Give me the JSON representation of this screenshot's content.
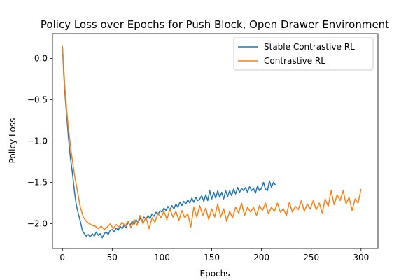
{
  "chart_data": {
    "type": "line",
    "title": "Policy Loss over Epochs for Push Block, Open Drawer Environment",
    "xlabel": "Epochs",
    "ylabel": "Policy Loss",
    "xlim": [
      -10,
      317
    ],
    "ylim": [
      -2.3,
      0.3
    ],
    "xticks": [
      0,
      50,
      100,
      150,
      200,
      250,
      300
    ],
    "xtick_labels": [
      "0",
      "50",
      "100",
      "150",
      "200",
      "250",
      "300"
    ],
    "yticks": [
      0.0,
      -0.5,
      -1.0,
      -1.5,
      -2.0
    ],
    "ytick_labels": [
      "0.0",
      "−0.5",
      "−1.0",
      "−1.5",
      "−2.0"
    ],
    "grid": false,
    "legend_position": "top-right",
    "series": [
      {
        "name": "Stable Contrastive RL",
        "color": "#1f77b4",
        "points": [
          [
            0,
            0.15
          ],
          [
            2,
            -0.35
          ],
          [
            4,
            -0.65
          ],
          [
            6,
            -0.95
          ],
          [
            8,
            -1.2
          ],
          [
            10,
            -1.38
          ],
          [
            12,
            -1.6
          ],
          [
            14,
            -1.78
          ],
          [
            16,
            -1.88
          ],
          [
            18,
            -1.97
          ],
          [
            20,
            -2.08
          ],
          [
            22,
            -2.12
          ],
          [
            24,
            -2.15
          ],
          [
            26,
            -2.13
          ],
          [
            28,
            -2.16
          ],
          [
            30,
            -2.12
          ],
          [
            32,
            -2.15
          ],
          [
            34,
            -2.1
          ],
          [
            36,
            -2.14
          ],
          [
            38,
            -2.12
          ],
          [
            40,
            -2.17
          ],
          [
            42,
            -2.12
          ],
          [
            44,
            -2.1
          ],
          [
            46,
            -2.13
          ],
          [
            48,
            -2.08
          ],
          [
            50,
            -2.07
          ],
          [
            52,
            -2.1
          ],
          [
            54,
            -2.05
          ],
          [
            56,
            -2.08
          ],
          [
            58,
            -2.03
          ],
          [
            60,
            -2.06
          ],
          [
            62,
            -2.02
          ],
          [
            64,
            -2.05
          ],
          [
            66,
            -1.98
          ],
          [
            68,
            -2.02
          ],
          [
            70,
            -1.97
          ],
          [
            72,
            -2.01
          ],
          [
            74,
            -1.95
          ],
          [
            76,
            -1.99
          ],
          [
            78,
            -1.93
          ],
          [
            80,
            -1.97
          ],
          [
            82,
            -1.92
          ],
          [
            84,
            -1.95
          ],
          [
            86,
            -1.9
          ],
          [
            88,
            -1.94
          ],
          [
            90,
            -1.88
          ],
          [
            92,
            -1.91
          ],
          [
            94,
            -1.86
          ],
          [
            96,
            -1.89
          ],
          [
            98,
            -1.84
          ],
          [
            100,
            -1.86
          ],
          [
            102,
            -1.81
          ],
          [
            104,
            -1.84
          ],
          [
            106,
            -1.79
          ],
          [
            108,
            -1.83
          ],
          [
            110,
            -1.78
          ],
          [
            112,
            -1.82
          ],
          [
            114,
            -1.76
          ],
          [
            116,
            -1.8
          ],
          [
            118,
            -1.74
          ],
          [
            120,
            -1.78
          ],
          [
            122,
            -1.73
          ],
          [
            124,
            -1.76
          ],
          [
            126,
            -1.71
          ],
          [
            128,
            -1.75
          ],
          [
            130,
            -1.69
          ],
          [
            132,
            -1.74
          ],
          [
            134,
            -1.68
          ],
          [
            136,
            -1.72
          ],
          [
            138,
            -1.7
          ],
          [
            140,
            -1.66
          ],
          [
            142,
            -1.73
          ],
          [
            144,
            -1.65
          ],
          [
            146,
            -1.72
          ],
          [
            148,
            -1.6
          ],
          [
            150,
            -1.7
          ],
          [
            152,
            -1.62
          ],
          [
            154,
            -1.69
          ],
          [
            156,
            -1.6
          ],
          [
            158,
            -1.68
          ],
          [
            160,
            -1.62
          ],
          [
            162,
            -1.7
          ],
          [
            164,
            -1.6
          ],
          [
            166,
            -1.67
          ],
          [
            168,
            -1.6
          ],
          [
            170,
            -1.66
          ],
          [
            172,
            -1.58
          ],
          [
            174,
            -1.64
          ],
          [
            176,
            -1.56
          ],
          [
            178,
            -1.62
          ],
          [
            180,
            -1.57
          ],
          [
            182,
            -1.6
          ],
          [
            184,
            -1.56
          ],
          [
            186,
            -1.62
          ],
          [
            188,
            -1.55
          ],
          [
            190,
            -1.6
          ],
          [
            192,
            -1.57
          ],
          [
            194,
            -1.63
          ],
          [
            196,
            -1.54
          ],
          [
            198,
            -1.6
          ],
          [
            200,
            -1.57
          ],
          [
            202,
            -1.5
          ],
          [
            204,
            -1.58
          ],
          [
            206,
            -1.6
          ],
          [
            208,
            -1.48
          ],
          [
            210,
            -1.56
          ],
          [
            212,
            -1.5
          ],
          [
            214,
            -1.53
          ]
        ]
      },
      {
        "name": "Contrastive RL",
        "color": "#ff7f0e",
        "points": [
          [
            0,
            0.15
          ],
          [
            3,
            -0.45
          ],
          [
            6,
            -0.85
          ],
          [
            9,
            -1.15
          ],
          [
            12,
            -1.4
          ],
          [
            15,
            -1.6
          ],
          [
            18,
            -1.8
          ],
          [
            21,
            -1.92
          ],
          [
            24,
            -1.97
          ],
          [
            27,
            -2.0
          ],
          [
            30,
            -2.02
          ],
          [
            33,
            -2.03
          ],
          [
            36,
            -2.06
          ],
          [
            39,
            -2.03
          ],
          [
            42,
            -2.07
          ],
          [
            45,
            -2.04
          ],
          [
            48,
            -2.0
          ],
          [
            51,
            -2.06
          ],
          [
            54,
            -2.01
          ],
          [
            57,
            -2.04
          ],
          [
            60,
            -1.98
          ],
          [
            63,
            -2.03
          ],
          [
            66,
            -1.97
          ],
          [
            69,
            -2.05
          ],
          [
            72,
            -1.95
          ],
          [
            75,
            -2.02
          ],
          [
            78,
            -1.9
          ],
          [
            81,
            -2.0
          ],
          [
            84,
            -1.92
          ],
          [
            87,
            -2.06
          ],
          [
            90,
            -1.93
          ],
          [
            93,
            -1.98
          ],
          [
            96,
            -1.87
          ],
          [
            99,
            -1.93
          ],
          [
            102,
            -1.85
          ],
          [
            105,
            -1.95
          ],
          [
            108,
            -1.82
          ],
          [
            111,
            -1.92
          ],
          [
            114,
            -1.85
          ],
          [
            117,
            -1.96
          ],
          [
            120,
            -1.84
          ],
          [
            123,
            -1.93
          ],
          [
            126,
            -1.88
          ],
          [
            129,
            -2.04
          ],
          [
            132,
            -1.8
          ],
          [
            135,
            -1.92
          ],
          [
            138,
            -1.78
          ],
          [
            141,
            -1.9
          ],
          [
            144,
            -1.81
          ],
          [
            147,
            -1.95
          ],
          [
            150,
            -1.82
          ],
          [
            153,
            -1.92
          ],
          [
            156,
            -1.76
          ],
          [
            159,
            -1.92
          ],
          [
            162,
            -1.82
          ],
          [
            165,
            -1.97
          ],
          [
            168,
            -1.85
          ],
          [
            171,
            -1.93
          ],
          [
            174,
            -1.8
          ],
          [
            177,
            -1.87
          ],
          [
            180,
            -1.75
          ],
          [
            183,
            -1.9
          ],
          [
            186,
            -1.8
          ],
          [
            189,
            -1.86
          ],
          [
            192,
            -1.8
          ],
          [
            195,
            -1.9
          ],
          [
            198,
            -1.78
          ],
          [
            201,
            -1.84
          ],
          [
            204,
            -1.75
          ],
          [
            207,
            -1.88
          ],
          [
            210,
            -1.8
          ],
          [
            213,
            -1.85
          ],
          [
            216,
            -1.75
          ],
          [
            219,
            -1.86
          ],
          [
            222,
            -1.82
          ],
          [
            225,
            -1.9
          ],
          [
            228,
            -1.74
          ],
          [
            231,
            -1.86
          ],
          [
            234,
            -1.79
          ],
          [
            237,
            -1.83
          ],
          [
            240,
            -1.72
          ],
          [
            243,
            -1.85
          ],
          [
            246,
            -1.76
          ],
          [
            249,
            -1.82
          ],
          [
            252,
            -1.72
          ],
          [
            255,
            -1.83
          ],
          [
            258,
            -1.75
          ],
          [
            261,
            -1.87
          ],
          [
            264,
            -1.7
          ],
          [
            267,
            -1.79
          ],
          [
            270,
            -1.6
          ],
          [
            273,
            -1.77
          ],
          [
            276,
            -1.65
          ],
          [
            279,
            -1.72
          ],
          [
            282,
            -1.6
          ],
          [
            285,
            -1.76
          ],
          [
            288,
            -1.68
          ],
          [
            291,
            -1.84
          ],
          [
            294,
            -1.7
          ],
          [
            297,
            -1.75
          ],
          [
            300,
            -1.58
          ]
        ]
      }
    ]
  }
}
